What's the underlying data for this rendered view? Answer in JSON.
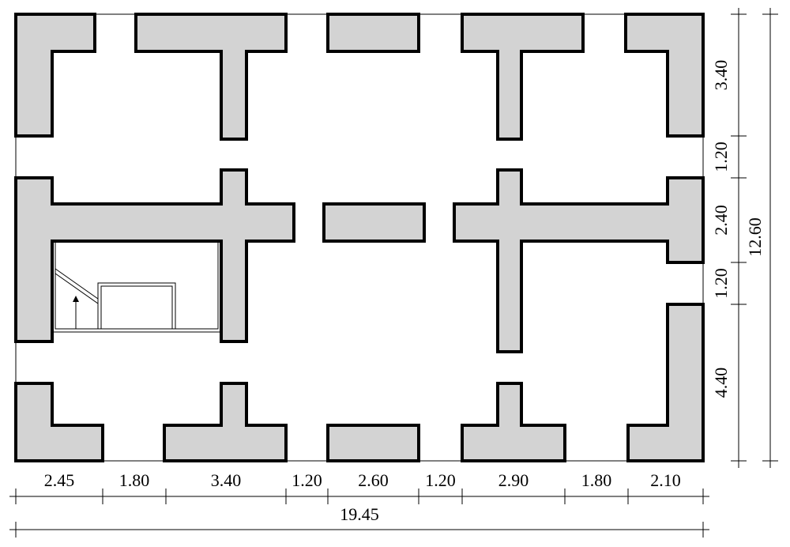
{
  "dimensions": {
    "bottom": {
      "segments": [
        "2.45",
        "1.80",
        "3.40",
        "1.20",
        "2.60",
        "1.20",
        "2.90",
        "1.80",
        "2.10"
      ],
      "total": "19.45"
    },
    "right": {
      "segments": [
        "3.40",
        "1.20",
        "2.40",
        "1.20",
        "4.40"
      ],
      "total": "12.60"
    }
  }
}
